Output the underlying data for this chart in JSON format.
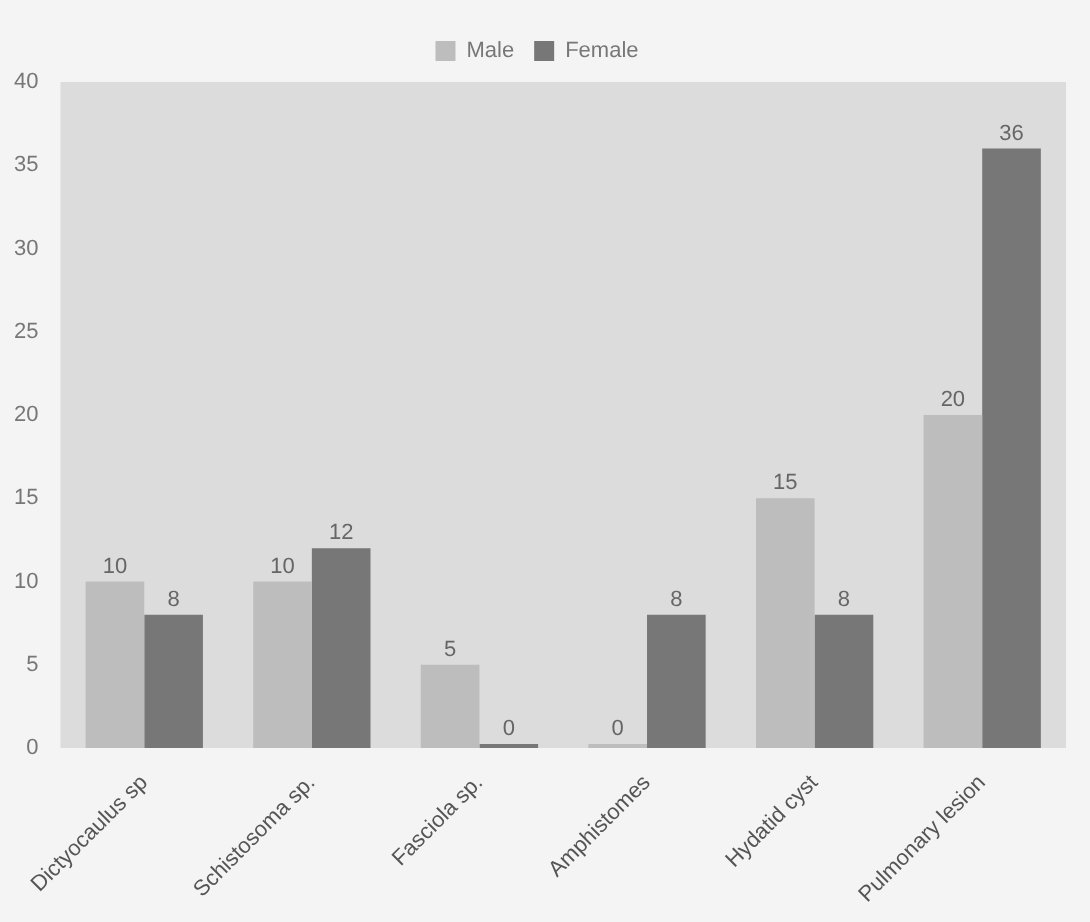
{
  "chart_data": {
    "type": "bar",
    "categories": [
      "Dictyocaulus sp",
      "Schistosoma sp.",
      "Fasciola sp.",
      "Amphistomes",
      "Hydatid cyst",
      "Pulmonary lesion"
    ],
    "series": [
      {
        "name": "Male",
        "color": "#bdbdbd",
        "values": [
          10,
          10,
          5,
          0,
          15,
          20
        ]
      },
      {
        "name": "Female",
        "color": "#777777",
        "values": [
          8,
          12,
          0,
          8,
          8,
          36
        ]
      }
    ],
    "ylim": [
      0,
      40
    ],
    "yticks": [
      0,
      5,
      10,
      15,
      20,
      25,
      30,
      35,
      40
    ],
    "grid": false,
    "legend": "top",
    "data_labels": true
  }
}
